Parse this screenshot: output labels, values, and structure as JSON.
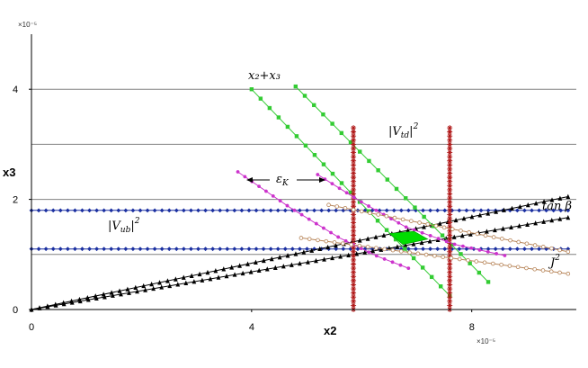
{
  "chart_data": {
    "type": "line",
    "xlabel": "x2",
    "ylabel": "x3",
    "x_exponent_label": "×10⁻⁵",
    "y_exponent_label": "×10⁻⁵",
    "xlim": [
      0,
      9.9
    ],
    "ylim": [
      0,
      5
    ],
    "x_ticks": [
      {
        "value": 0,
        "label": "0"
      },
      {
        "value": 4,
        "label": "4"
      },
      {
        "value": 8,
        "label": "8"
      }
    ],
    "y_ticks": [
      {
        "value": 0,
        "label": "0"
      },
      {
        "value": 2,
        "label": "2"
      },
      {
        "value": 4,
        "label": "4"
      }
    ],
    "h_gridlines": [
      1,
      2,
      3,
      4
    ],
    "annotations": {
      "x2_plus_x3": "x₂+x₃",
      "vtd": "|V",
      "vtd_sub": "td",
      "vtd_sup": "2",
      "vub": "|V",
      "vub_sub": "ub",
      "vub_sup": "2",
      "epsK": "ε",
      "epsK_sub": "K",
      "tanb": "tan β",
      "J": "J",
      "J_sup": "2"
    },
    "colors": {
      "vub": "#1a2fa0",
      "vtd": "#b01818",
      "x2x3": "#33cc33",
      "epsK": "#cc33cc",
      "tanb": "#000000",
      "J2": "#b8865a",
      "region": "#00dd00",
      "grid": "#808080"
    },
    "series": [
      {
        "name": "|Vub|^2 upper",
        "kind": "hline",
        "y": 1.8,
        "x": [
          0,
          9.75
        ],
        "color": "#1a2fa0",
        "marker": "diamond"
      },
      {
        "name": "|Vub|^2 lower",
        "kind": "hline",
        "y": 1.1,
        "x": [
          0,
          9.75
        ],
        "color": "#1a2fa0",
        "marker": "diamond"
      },
      {
        "name": "tan beta upper",
        "kind": "line",
        "points": [
          [
            0,
            0
          ],
          [
            9.75,
            2.05
          ]
        ],
        "color": "#000000",
        "marker": "triangle"
      },
      {
        "name": "tan beta lower",
        "kind": "line",
        "points": [
          [
            0,
            0
          ],
          [
            9.75,
            1.67
          ]
        ],
        "color": "#000000",
        "marker": "triangle"
      },
      {
        "name": "x2+x3 left",
        "kind": "line",
        "points": [
          [
            4.0,
            4.0
          ],
          [
            7.6,
            0.25
          ]
        ],
        "color": "#33cc33",
        "marker": "square"
      },
      {
        "name": "x2+x3 right",
        "kind": "line",
        "points": [
          [
            4.8,
            4.05
          ],
          [
            8.3,
            0.5
          ]
        ],
        "color": "#33cc33",
        "marker": "square"
      },
      {
        "name": "|Vtd|^2 left",
        "kind": "vline",
        "x": 5.85,
        "y": [
          0,
          3.3
        ],
        "color": "#b01818",
        "marker": "star"
      },
      {
        "name": "|Vtd|^2 right",
        "kind": "vline",
        "x": 7.6,
        "y": [
          0,
          3.3
        ],
        "color": "#b01818",
        "marker": "star"
      },
      {
        "name": "epsK left",
        "kind": "curve",
        "points": [
          [
            3.75,
            2.5
          ],
          [
            4.7,
            1.85
          ],
          [
            5.6,
            1.3
          ],
          [
            6.3,
            0.96
          ],
          [
            6.85,
            0.75
          ]
        ],
        "color": "#cc33cc",
        "marker": "circle"
      },
      {
        "name": "epsK right",
        "kind": "curve",
        "points": [
          [
            5.2,
            2.45
          ],
          [
            6.0,
            1.95
          ],
          [
            6.8,
            1.5
          ],
          [
            7.7,
            1.18
          ],
          [
            8.6,
            0.98
          ]
        ],
        "color": "#cc33cc",
        "marker": "circle"
      },
      {
        "name": "J^2 upper",
        "kind": "line",
        "points": [
          [
            5.4,
            1.9
          ],
          [
            9.75,
            1.05
          ]
        ],
        "color": "#b8865a",
        "marker": "open-circle"
      },
      {
        "name": "J^2 lower",
        "kind": "line",
        "points": [
          [
            4.9,
            1.3
          ],
          [
            9.75,
            0.65
          ]
        ],
        "color": "#b8865a",
        "marker": "open-circle"
      }
    ],
    "region": {
      "name": "allowed region",
      "points": [
        [
          6.5,
          1.38
        ],
        [
          6.95,
          1.42
        ],
        [
          7.2,
          1.28
        ],
        [
          6.75,
          1.18
        ]
      ],
      "color": "#00dd00"
    }
  }
}
